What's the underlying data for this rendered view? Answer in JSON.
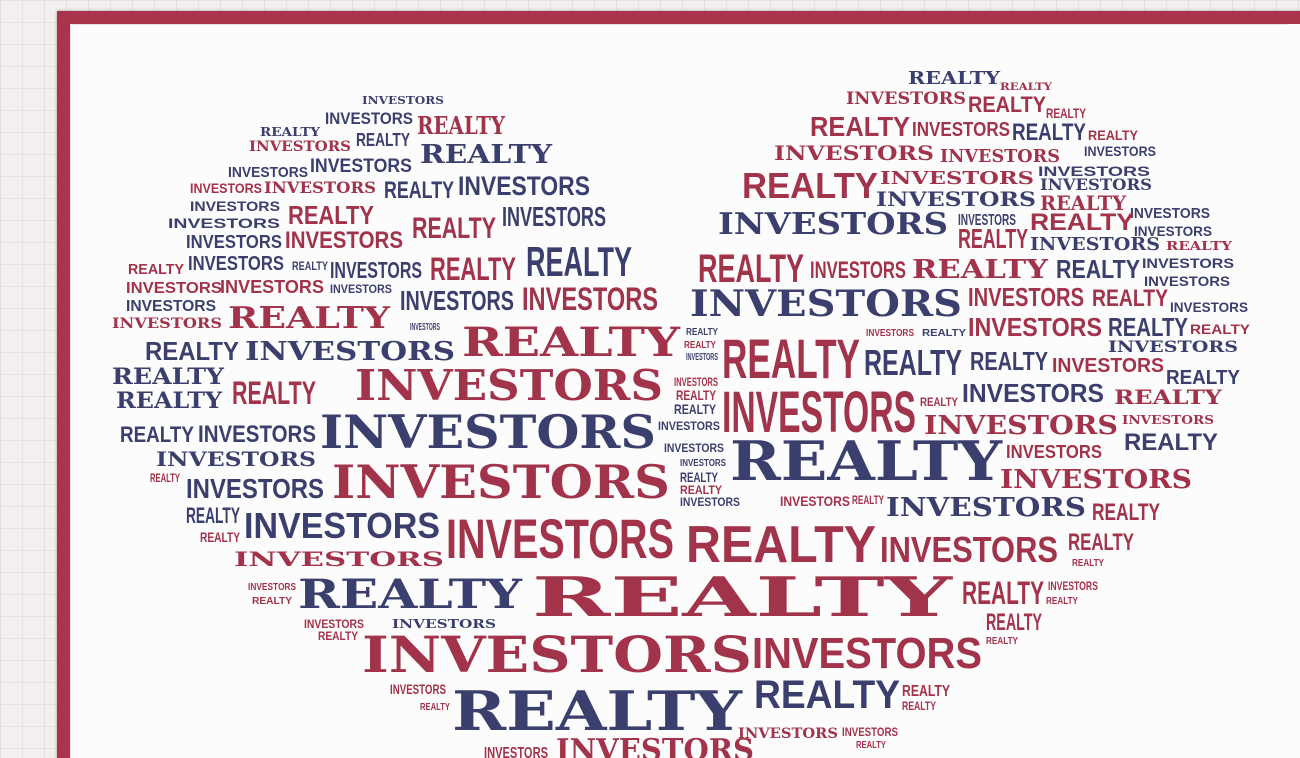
{
  "artwork": {
    "words": [
      "REALTY",
      "INVESTORS"
    ],
    "colors": {
      "frame": "#a8354b",
      "red": "#a1334a",
      "navy": "#3b3f6d",
      "paper": "#fdfcfc",
      "grid": "#e6dfe0"
    }
  }
}
